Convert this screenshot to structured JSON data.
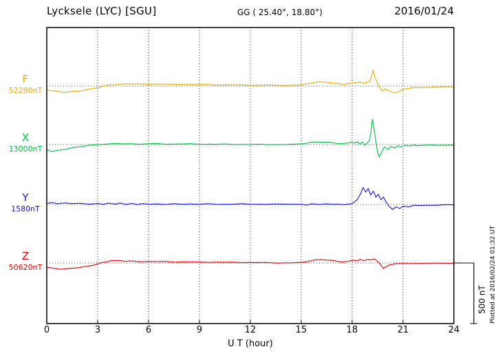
{
  "header": {
    "station": "Lycksele (LYC)  [SGU]",
    "coords": "GG ( 25.40°,  18.80°)",
    "date": "2016/01/24"
  },
  "axis": {
    "x_label": "U T (hour)",
    "x_ticks": [
      0,
      3,
      6,
      9,
      12,
      15,
      18,
      21,
      24
    ],
    "x_range": [
      0,
      24
    ]
  },
  "scalebar": {
    "label": "500 nT",
    "nT": 500
  },
  "footer_note": "Plotted at 2016/02/24 01:32 UT",
  "chart_data": {
    "type": "line",
    "title": "Lycksele (LYC) [SGU] magnetogram 2016/01/24",
    "xlabel": "U T (hour)",
    "x_range": [
      0,
      24
    ],
    "grid": "dotted vertical every 3 hours, dotted horizontal baseline per component",
    "scale_bar_nT": 500,
    "series": [
      {
        "name": "F",
        "baseline_label": "52290nT",
        "baseline_nT": 52290,
        "color": "#f0a800",
        "points": [
          [
            0,
            -30
          ],
          [
            0.4,
            -40
          ],
          [
            0.8,
            -48
          ],
          [
            1.2,
            -50
          ],
          [
            1.6,
            -45
          ],
          [
            2.0,
            -38
          ],
          [
            2.4,
            -30
          ],
          [
            2.8,
            -18
          ],
          [
            3.2,
            -6
          ],
          [
            3.6,
            6
          ],
          [
            4.0,
            14
          ],
          [
            4.5,
            18
          ],
          [
            5,
            16
          ],
          [
            5.5,
            18
          ],
          [
            6,
            16
          ],
          [
            6.5,
            17
          ],
          [
            7,
            15
          ],
          [
            7.5,
            14
          ],
          [
            8,
            15
          ],
          [
            8.5,
            13
          ],
          [
            9,
            12
          ],
          [
            9.5,
            12
          ],
          [
            10,
            10
          ],
          [
            10.5,
            9
          ],
          [
            11,
            10
          ],
          [
            11.5,
            8
          ],
          [
            12,
            8
          ],
          [
            12.5,
            7
          ],
          [
            13,
            7
          ],
          [
            13.5,
            6
          ],
          [
            14,
            6
          ],
          [
            14.5,
            7
          ],
          [
            15,
            10
          ],
          [
            15.4,
            20
          ],
          [
            15.8,
            30
          ],
          [
            16.2,
            34
          ],
          [
            16.6,
            30
          ],
          [
            17.0,
            22
          ],
          [
            17.4,
            16
          ],
          [
            17.8,
            20
          ],
          [
            18.0,
            30
          ],
          [
            18.2,
            26
          ],
          [
            18.45,
            32
          ],
          [
            18.7,
            24
          ],
          [
            18.9,
            30
          ],
          [
            19.05,
            40
          ],
          [
            19.15,
            80
          ],
          [
            19.25,
            125
          ],
          [
            19.35,
            70
          ],
          [
            19.5,
            20
          ],
          [
            19.65,
            -15
          ],
          [
            19.8,
            -40
          ],
          [
            19.95,
            -25
          ],
          [
            20.1,
            -35
          ],
          [
            20.3,
            -50
          ],
          [
            20.6,
            -55
          ],
          [
            20.9,
            -35
          ],
          [
            21.2,
            -20
          ],
          [
            21.6,
            -15
          ],
          [
            22,
            -12
          ],
          [
            22.5,
            -10
          ],
          [
            23,
            -8
          ],
          [
            23.5,
            -7
          ],
          [
            24,
            -6
          ]
        ]
      },
      {
        "name": "X",
        "baseline_label": "13000nT",
        "baseline_nT": 13000,
        "color": "#00c040",
        "points": [
          [
            0,
            -45
          ],
          [
            0.3,
            -55
          ],
          [
            0.6,
            -50
          ],
          [
            1.0,
            -40
          ],
          [
            1.4,
            -30
          ],
          [
            1.8,
            -20
          ],
          [
            2.2,
            -12
          ],
          [
            2.6,
            -6
          ],
          [
            3,
            0
          ],
          [
            3.5,
            5
          ],
          [
            4,
            8
          ],
          [
            4.5,
            5
          ],
          [
            5,
            8
          ],
          [
            5.5,
            4
          ],
          [
            6,
            6
          ],
          [
            6.5,
            8
          ],
          [
            7,
            4
          ],
          [
            7.5,
            6
          ],
          [
            8,
            4
          ],
          [
            8.5,
            6
          ],
          [
            9,
            3
          ],
          [
            9.5,
            5
          ],
          [
            10,
            2
          ],
          [
            10.5,
            4
          ],
          [
            11,
            2
          ],
          [
            11.5,
            3
          ],
          [
            12,
            0
          ],
          [
            12.5,
            2
          ],
          [
            13,
            0
          ],
          [
            13.5,
            2
          ],
          [
            14,
            0
          ],
          [
            14.5,
            2
          ],
          [
            15,
            6
          ],
          [
            15.4,
            14
          ],
          [
            15.8,
            20
          ],
          [
            16.2,
            22
          ],
          [
            16.6,
            18
          ],
          [
            17,
            12
          ],
          [
            17.4,
            8
          ],
          [
            17.8,
            12
          ],
          [
            18.0,
            20
          ],
          [
            18.15,
            10
          ],
          [
            18.3,
            25
          ],
          [
            18.45,
            5
          ],
          [
            18.6,
            20
          ],
          [
            18.75,
            -5
          ],
          [
            18.9,
            15
          ],
          [
            19.0,
            30
          ],
          [
            19.1,
            90
          ],
          [
            19.2,
            210
          ],
          [
            19.3,
            120
          ],
          [
            19.4,
            30
          ],
          [
            19.5,
            -60
          ],
          [
            19.6,
            -100
          ],
          [
            19.75,
            -60
          ],
          [
            19.9,
            -20
          ],
          [
            20.1,
            -40
          ],
          [
            20.3,
            -15
          ],
          [
            20.5,
            -30
          ],
          [
            20.7,
            -10
          ],
          [
            20.9,
            -20
          ],
          [
            21.1,
            -5
          ],
          [
            21.4,
            -10
          ],
          [
            21.7,
            -5
          ],
          [
            22,
            -8
          ],
          [
            22.5,
            -5
          ],
          [
            23,
            -6
          ],
          [
            23.5,
            -4
          ],
          [
            24,
            -5
          ]
        ]
      },
      {
        "name": "Y",
        "baseline_label": "1580nT",
        "baseline_nT": 1580,
        "color": "#1515e0",
        "points": [
          [
            0,
            10
          ],
          [
            0.3,
            15
          ],
          [
            0.6,
            8
          ],
          [
            1,
            12
          ],
          [
            1.5,
            6
          ],
          [
            2,
            10
          ],
          [
            2.5,
            4
          ],
          [
            3,
            8
          ],
          [
            3.3,
            2
          ],
          [
            3.6,
            10
          ],
          [
            4,
            4
          ],
          [
            4.3,
            12
          ],
          [
            4.6,
            2
          ],
          [
            5,
            8
          ],
          [
            5.3,
            0
          ],
          [
            5.6,
            6
          ],
          [
            6,
            2
          ],
          [
            6.5,
            6
          ],
          [
            7,
            0
          ],
          [
            7.5,
            5
          ],
          [
            8,
            2
          ],
          [
            8.5,
            6
          ],
          [
            9,
            2
          ],
          [
            9.5,
            5
          ],
          [
            10,
            1
          ],
          [
            10.5,
            4
          ],
          [
            11,
            2
          ],
          [
            11.5,
            5
          ],
          [
            12,
            2
          ],
          [
            12.5,
            4
          ],
          [
            13,
            1
          ],
          [
            13.5,
            3
          ],
          [
            14,
            2
          ],
          [
            14.5,
            4
          ],
          [
            15,
            2
          ],
          [
            15.3,
            -5
          ],
          [
            15.6,
            5
          ],
          [
            16,
            0
          ],
          [
            16.4,
            6
          ],
          [
            16.8,
            0
          ],
          [
            17.2,
            4
          ],
          [
            17.6,
            -2
          ],
          [
            17.9,
            5
          ],
          [
            18.1,
            15
          ],
          [
            18.3,
            40
          ],
          [
            18.5,
            90
          ],
          [
            18.65,
            140
          ],
          [
            18.8,
            100
          ],
          [
            18.95,
            130
          ],
          [
            19.1,
            80
          ],
          [
            19.25,
            110
          ],
          [
            19.4,
            60
          ],
          [
            19.55,
            85
          ],
          [
            19.7,
            40
          ],
          [
            19.85,
            60
          ],
          [
            20.0,
            20
          ],
          [
            20.2,
            -20
          ],
          [
            20.4,
            -40
          ],
          [
            20.6,
            -20
          ],
          [
            20.8,
            -35
          ],
          [
            21.0,
            -15
          ],
          [
            21.3,
            -20
          ],
          [
            21.6,
            -8
          ],
          [
            22,
            -10
          ],
          [
            22.5,
            -5
          ],
          [
            23,
            -6
          ],
          [
            23.5,
            -3
          ],
          [
            24,
            -4
          ]
        ]
      },
      {
        "name": "Z",
        "baseline_label": "50620nT",
        "baseline_nT": 50620,
        "color": "#e80000",
        "points": [
          [
            0,
            -35
          ],
          [
            0.4,
            -45
          ],
          [
            0.8,
            -50
          ],
          [
            1.2,
            -48
          ],
          [
            1.6,
            -42
          ],
          [
            2.0,
            -35
          ],
          [
            2.4,
            -28
          ],
          [
            2.8,
            -15
          ],
          [
            3.2,
            0
          ],
          [
            3.5,
            10
          ],
          [
            3.8,
            18
          ],
          [
            4.1,
            22
          ],
          [
            4.4,
            18
          ],
          [
            4.7,
            14
          ],
          [
            5,
            16
          ],
          [
            5.5,
            12
          ],
          [
            6,
            14
          ],
          [
            6.5,
            10
          ],
          [
            7,
            12
          ],
          [
            7.5,
            8
          ],
          [
            8,
            10
          ],
          [
            8.5,
            8
          ],
          [
            9,
            8
          ],
          [
            9.5,
            6
          ],
          [
            10,
            8
          ],
          [
            10.5,
            5
          ],
          [
            11,
            6
          ],
          [
            11.5,
            4
          ],
          [
            12,
            5
          ],
          [
            12.5,
            2
          ],
          [
            13,
            3
          ],
          [
            13.5,
            0
          ],
          [
            14,
            2
          ],
          [
            14.5,
            0
          ],
          [
            15,
            4
          ],
          [
            15.4,
            14
          ],
          [
            15.8,
            24
          ],
          [
            16.2,
            28
          ],
          [
            16.6,
            24
          ],
          [
            17,
            16
          ],
          [
            17.4,
            10
          ],
          [
            17.8,
            14
          ],
          [
            18.1,
            24
          ],
          [
            18.3,
            18
          ],
          [
            18.5,
            28
          ],
          [
            18.7,
            20
          ],
          [
            18.9,
            30
          ],
          [
            19.1,
            24
          ],
          [
            19.3,
            35
          ],
          [
            19.5,
            15
          ],
          [
            19.7,
            -20
          ],
          [
            19.85,
            -45
          ],
          [
            20.0,
            -30
          ],
          [
            20.2,
            -15
          ],
          [
            20.5,
            -8
          ],
          [
            21,
            -5
          ],
          [
            21.5,
            -4
          ],
          [
            22,
            -3
          ],
          [
            22.5,
            -4
          ],
          [
            23,
            -3
          ],
          [
            23.5,
            -2
          ],
          [
            24,
            -2
          ]
        ]
      }
    ]
  }
}
